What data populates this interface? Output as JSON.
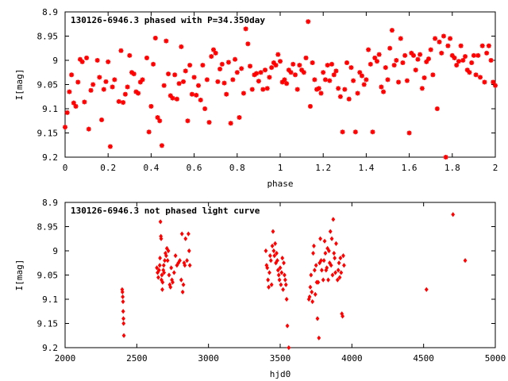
{
  "chart_data": [
    {
      "type": "scatter",
      "title": "130126-6946.3 phased with P=34.350day",
      "xlabel": "phase",
      "ylabel": "I[mag]",
      "xlim": [
        0,
        2
      ],
      "ylim": [
        9.2,
        8.9
      ],
      "y_inverted": true,
      "grid": false,
      "marker_color": "#ff0000",
      "x_ticks": [
        "0",
        "0.2",
        "0.4",
        "0.6",
        "0.8",
        "1",
        "1.2",
        "1.4",
        "1.6",
        "1.8",
        "2"
      ],
      "x_tick_values": [
        0,
        0.2,
        0.4,
        0.6,
        0.8,
        1.0,
        1.2,
        1.4,
        1.6,
        1.8,
        2.0
      ],
      "y_ticks": [
        "8.9",
        "8.95",
        "9",
        "9.05",
        "9.1",
        "9.15",
        "9.2"
      ],
      "y_tick_values": [
        8.9,
        8.95,
        9.0,
        9.05,
        9.1,
        9.15,
        9.2
      ],
      "points": [
        [
          0.0,
          9.138
        ],
        [
          0.01,
          9.108
        ],
        [
          0.02,
          9.065
        ],
        [
          0.03,
          9.03
        ],
        [
          0.04,
          9.088
        ],
        [
          0.05,
          9.095
        ],
        [
          0.06,
          9.045
        ],
        [
          0.07,
          8.998
        ],
        [
          0.08,
          9.003
        ],
        [
          0.09,
          9.086
        ],
        [
          0.1,
          8.995
        ],
        [
          0.11,
          9.142
        ],
        [
          0.12,
          9.062
        ],
        [
          0.13,
          9.05
        ],
        [
          0.15,
          9.0
        ],
        [
          0.16,
          9.035
        ],
        [
          0.17,
          9.123
        ],
        [
          0.18,
          9.06
        ],
        [
          0.19,
          9.044
        ],
        [
          0.2,
          9.003
        ],
        [
          0.21,
          9.178
        ],
        [
          0.22,
          9.055
        ],
        [
          0.23,
          9.04
        ],
        [
          0.25,
          9.085
        ],
        [
          0.26,
          8.98
        ],
        [
          0.27,
          9.087
        ],
        [
          0.28,
          9.07
        ],
        [
          0.29,
          9.055
        ],
        [
          0.3,
          8.99
        ],
        [
          0.31,
          9.025
        ],
        [
          0.32,
          9.028
        ],
        [
          0.33,
          9.065
        ],
        [
          0.34,
          9.068
        ],
        [
          0.35,
          9.045
        ],
        [
          0.36,
          9.04
        ],
        [
          0.38,
          8.995
        ],
        [
          0.39,
          9.148
        ],
        [
          0.4,
          9.095
        ],
        [
          0.41,
          9.008
        ],
        [
          0.42,
          8.954
        ],
        [
          0.43,
          9.118
        ],
        [
          0.44,
          9.125
        ],
        [
          0.45,
          9.176
        ],
        [
          0.46,
          9.052
        ],
        [
          0.47,
          8.96
        ],
        [
          0.48,
          9.028
        ],
        [
          0.49,
          9.073
        ],
        [
          0.5,
          9.078
        ],
        [
          0.51,
          9.03
        ],
        [
          0.52,
          9.08
        ],
        [
          0.53,
          9.048
        ],
        [
          0.54,
          8.972
        ],
        [
          0.55,
          9.044
        ],
        [
          0.56,
          9.022
        ],
        [
          0.57,
          9.125
        ],
        [
          0.58,
          9.01
        ],
        [
          0.59,
          9.07
        ],
        [
          0.6,
          9.035
        ],
        [
          0.61,
          9.072
        ],
        [
          0.62,
          9.052
        ],
        [
          0.63,
          9.082
        ],
        [
          0.64,
          9.01
        ],
        [
          0.65,
          9.1
        ],
        [
          0.66,
          9.04
        ],
        [
          0.67,
          9.128
        ],
        [
          0.68,
          8.992
        ],
        [
          0.69,
          8.978
        ],
        [
          0.7,
          8.985
        ],
        [
          0.71,
          9.044
        ],
        [
          0.72,
          9.018
        ],
        [
          0.73,
          9.008
        ],
        [
          0.74,
          9.047
        ],
        [
          0.75,
          9.07
        ],
        [
          0.76,
          9.004
        ],
        [
          0.77,
          9.13
        ],
        [
          0.78,
          9.04
        ],
        [
          0.79,
          8.998
        ],
        [
          0.8,
          9.025
        ],
        [
          0.81,
          9.118
        ],
        [
          0.82,
          9.017
        ],
        [
          0.83,
          9.068
        ],
        [
          0.84,
          8.935
        ],
        [
          0.85,
          8.966
        ],
        [
          0.86,
          9.012
        ],
        [
          0.87,
          9.06
        ],
        [
          0.88,
          9.03
        ],
        [
          0.89,
          9.027
        ],
        [
          0.9,
          9.043
        ],
        [
          0.91,
          9.025
        ],
        [
          0.92,
          9.06
        ],
        [
          0.93,
          9.02
        ],
        [
          0.94,
          9.058
        ],
        [
          0.95,
          9.035
        ],
        [
          0.96,
          9.015
        ],
        [
          0.97,
          9.005
        ],
        [
          0.98,
          9.01
        ],
        [
          0.99,
          8.988
        ],
        [
          1.0,
          9.002
        ],
        [
          1.01,
          9.045
        ],
        [
          1.02,
          9.04
        ],
        [
          1.03,
          9.048
        ],
        [
          1.04,
          9.02
        ],
        [
          1.05,
          9.025
        ],
        [
          1.06,
          9.008
        ],
        [
          1.07,
          9.03
        ],
        [
          1.08,
          9.06
        ],
        [
          1.09,
          9.01
        ],
        [
          1.1,
          9.02
        ],
        [
          1.11,
          9.025
        ],
        [
          1.12,
          8.995
        ],
        [
          1.13,
          8.92
        ],
        [
          1.14,
          9.095
        ],
        [
          1.15,
          9.005
        ],
        [
          1.16,
          9.04
        ],
        [
          1.17,
          9.06
        ],
        [
          1.18,
          9.058
        ],
        [
          1.19,
          9.068
        ],
        [
          1.2,
          9.025
        ],
        [
          1.21,
          9.04
        ],
        [
          1.22,
          9.01
        ],
        [
          1.23,
          9.042
        ],
        [
          1.24,
          9.008
        ],
        [
          1.25,
          9.03
        ],
        [
          1.26,
          9.022
        ],
        [
          1.27,
          9.058
        ],
        [
          1.28,
          9.075
        ],
        [
          1.29,
          9.148
        ],
        [
          1.3,
          9.06
        ],
        [
          1.31,
          9.005
        ],
        [
          1.32,
          9.08
        ],
        [
          1.33,
          9.015
        ],
        [
          1.34,
          9.042
        ],
        [
          1.35,
          9.148
        ],
        [
          1.36,
          9.068
        ],
        [
          1.37,
          9.025
        ],
        [
          1.38,
          9.032
        ],
        [
          1.39,
          9.05
        ],
        [
          1.4,
          9.04
        ],
        [
          1.41,
          8.978
        ],
        [
          1.42,
          9.008
        ],
        [
          1.43,
          9.148
        ],
        [
          1.44,
          8.995
        ],
        [
          1.45,
          9.002
        ],
        [
          1.46,
          8.988
        ],
        [
          1.47,
          9.055
        ],
        [
          1.48,
          9.065
        ],
        [
          1.49,
          9.015
        ],
        [
          1.5,
          9.04
        ],
        [
          1.51,
          8.975
        ],
        [
          1.52,
          8.938
        ],
        [
          1.53,
          9.01
        ],
        [
          1.54,
          9.0
        ],
        [
          1.55,
          9.045
        ],
        [
          1.56,
          8.955
        ],
        [
          1.57,
          9.005
        ],
        [
          1.58,
          8.99
        ],
        [
          1.59,
          9.042
        ],
        [
          1.6,
          9.15
        ],
        [
          1.61,
          8.985
        ],
        [
          1.62,
          8.99
        ],
        [
          1.63,
          9.02
        ],
        [
          1.64,
          8.998
        ],
        [
          1.65,
          8.988
        ],
        [
          1.66,
          9.058
        ],
        [
          1.67,
          9.036
        ],
        [
          1.68,
          9.003
        ],
        [
          1.69,
          8.997
        ],
        [
          1.7,
          8.978
        ],
        [
          1.71,
          9.03
        ],
        [
          1.72,
          8.955
        ],
        [
          1.73,
          9.1
        ],
        [
          1.74,
          8.962
        ],
        [
          1.75,
          8.985
        ],
        [
          1.76,
          8.95
        ],
        [
          1.77,
          9.2
        ],
        [
          1.78,
          8.97
        ],
        [
          1.79,
          8.955
        ],
        [
          1.8,
          8.99
        ],
        [
          1.81,
          8.995
        ],
        [
          1.82,
          9.01
        ],
        [
          1.83,
          9.002
        ],
        [
          1.84,
          8.97
        ],
        [
          1.85,
          9.0
        ],
        [
          1.86,
          8.992
        ],
        [
          1.87,
          9.02
        ],
        [
          1.88,
          9.025
        ],
        [
          1.89,
          9.005
        ],
        [
          1.9,
          8.99
        ],
        [
          1.91,
          9.03
        ],
        [
          1.92,
          8.99
        ],
        [
          1.93,
          9.035
        ],
        [
          1.94,
          8.97
        ],
        [
          1.95,
          9.045
        ],
        [
          1.96,
          8.985
        ],
        [
          1.97,
          8.97
        ],
        [
          1.98,
          9.0
        ],
        [
          1.99,
          9.045
        ],
        [
          2.0,
          9.052
        ]
      ]
    },
    {
      "type": "scatter",
      "title": "130126-6946.3 not phased light curve",
      "xlabel": "hjd0",
      "ylabel": "I[mag]",
      "xlim": [
        2000,
        5000
      ],
      "ylim": [
        9.2,
        8.9
      ],
      "y_inverted": true,
      "grid": false,
      "marker_color": "#ff0000",
      "x_ticks": [
        "2000",
        "2500",
        "3000",
        "3500",
        "4000",
        "4500",
        "5000"
      ],
      "x_tick_values": [
        2000,
        2500,
        3000,
        3500,
        4000,
        4500,
        5000
      ],
      "y_ticks": [
        "8.9",
        "8.95",
        "9",
        "9.05",
        "9.1",
        "9.15",
        "9.2"
      ],
      "y_tick_values": [
        8.9,
        8.95,
        9.0,
        9.05,
        9.1,
        9.15,
        9.2
      ],
      "points": [
        [
          2400,
          9.085
        ],
        [
          2402,
          9.095
        ],
        [
          2404,
          9.105
        ],
        [
          2405,
          9.125
        ],
        [
          2407,
          9.14
        ],
        [
          2408,
          9.15
        ],
        [
          2410,
          9.175
        ],
        [
          2398,
          9.08
        ],
        [
          2640,
          9.035
        ],
        [
          2645,
          9.045
        ],
        [
          2650,
          9.055
        ],
        [
          2655,
          9.04
        ],
        [
          2660,
          9.03
        ],
        [
          2662,
          9.015
        ],
        [
          2665,
          8.94
        ],
        [
          2668,
          8.97
        ],
        [
          2670,
          8.975
        ],
        [
          2672,
          9.06
        ],
        [
          2675,
          9.05
        ],
        [
          2678,
          9.08
        ],
        [
          2680,
          9.065
        ],
        [
          2685,
          9.04
        ],
        [
          2688,
          9.03
        ],
        [
          2690,
          9.045
        ],
        [
          2695,
          9.02
        ],
        [
          2700,
          9.005
        ],
        [
          2705,
          9.01
        ],
        [
          2710,
          8.995
        ],
        [
          2715,
          9.02
        ],
        [
          2720,
          9.0
        ],
        [
          2725,
          9.05
        ],
        [
          2730,
          9.07
        ],
        [
          2735,
          9.075
        ],
        [
          2740,
          9.035
        ],
        [
          2745,
          9.06
        ],
        [
          2750,
          9.065
        ],
        [
          2760,
          9.045
        ],
        [
          2770,
          9.01
        ],
        [
          2780,
          9.03
        ],
        [
          2790,
          9.025
        ],
        [
          2800,
          9.02
        ],
        [
          2810,
          9.06
        ],
        [
          2815,
          8.965
        ],
        [
          2820,
          9.085
        ],
        [
          2825,
          9.07
        ],
        [
          2830,
          9.025
        ],
        [
          2835,
          9.03
        ],
        [
          2840,
          8.975
        ],
        [
          2850,
          9.02
        ],
        [
          2860,
          8.965
        ],
        [
          2865,
          9.0
        ],
        [
          2870,
          9.03
        ],
        [
          3400,
          9.0
        ],
        [
          3405,
          9.03
        ],
        [
          3410,
          9.035
        ],
        [
          3415,
          9.06
        ],
        [
          3420,
          9.075
        ],
        [
          3425,
          9.045
        ],
        [
          3430,
          9.01
        ],
        [
          3435,
          9.02
        ],
        [
          3440,
          9.07
        ],
        [
          3445,
          8.99
        ],
        [
          3450,
          8.96
        ],
        [
          3455,
          9.0
        ],
        [
          3460,
          9.01
        ],
        [
          3465,
          8.985
        ],
        [
          3470,
          9.025
        ],
        [
          3475,
          9.005
        ],
        [
          3480,
          9.02
        ],
        [
          3485,
          9.04
        ],
        [
          3490,
          9.05
        ],
        [
          3495,
          9.06
        ],
        [
          3500,
          9.035
        ],
        [
          3505,
          9.07
        ],
        [
          3510,
          9.045
        ],
        [
          3515,
          9.015
        ],
        [
          3520,
          9.08
        ],
        [
          3525,
          9.025
        ],
        [
          3530,
          9.05
        ],
        [
          3535,
          9.06
        ],
        [
          3540,
          9.07
        ],
        [
          3545,
          9.1
        ],
        [
          3550,
          9.155
        ],
        [
          3560,
          9.2
        ],
        [
          3700,
          9.1
        ],
        [
          3705,
          9.095
        ],
        [
          3710,
          9.075
        ],
        [
          3715,
          9.05
        ],
        [
          3720,
          9.085
        ],
        [
          3725,
          9.105
        ],
        [
          3730,
          9.005
        ],
        [
          3735,
          8.99
        ],
        [
          3740,
          9.04
        ],
        [
          3745,
          9.09
        ],
        [
          3750,
          9.03
        ],
        [
          3755,
          9.065
        ],
        [
          3760,
          9.14
        ],
        [
          3765,
          9.065
        ],
        [
          3770,
          9.18
        ],
        [
          3775,
          9.025
        ],
        [
          3780,
          8.975
        ],
        [
          3785,
          9.02
        ],
        [
          3790,
          9.04
        ],
        [
          3800,
          9.06
        ],
        [
          3805,
          9.02
        ],
        [
          3810,
          8.98
        ],
        [
          3815,
          9.005
        ],
        [
          3820,
          9.04
        ],
        [
          3825,
          9.035
        ],
        [
          3830,
          8.995
        ],
        [
          3835,
          9.06
        ],
        [
          3840,
          9.0
        ],
        [
          3845,
          9.025
        ],
        [
          3850,
          8.96
        ],
        [
          3855,
          9.03
        ],
        [
          3860,
          8.975
        ],
        [
          3865,
          9.05
        ],
        [
          3870,
          8.935
        ],
        [
          3875,
          9.005
        ],
        [
          3880,
          9.015
        ],
        [
          3885,
          9.045
        ],
        [
          3890,
          8.985
        ],
        [
          3900,
          9.06
        ],
        [
          3905,
          9.04
        ],
        [
          3910,
          9.025
        ],
        [
          3915,
          9.055
        ],
        [
          3920,
          9.015
        ],
        [
          3925,
          9.045
        ],
        [
          3930,
          9.13
        ],
        [
          3935,
          9.135
        ],
        [
          3940,
          9.01
        ],
        [
          3945,
          9.03
        ],
        [
          4520,
          9.08
        ],
        [
          4705,
          8.925
        ],
        [
          4790,
          9.02
        ]
      ]
    }
  ]
}
